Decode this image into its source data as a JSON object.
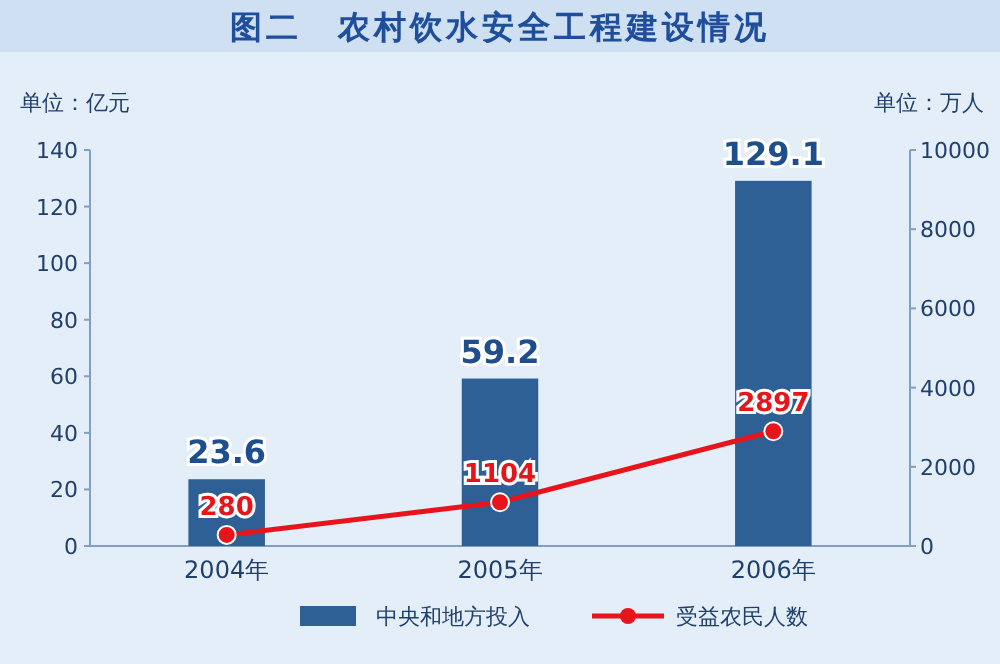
{
  "chart_data": {
    "type": "bar",
    "title": "图二　农村饮水安全工程建设情况",
    "ylabel": "单位：亿元",
    "y2label": "单位：万人",
    "categories": [
      "2004年",
      "2005年",
      "2006年"
    ],
    "series": [
      {
        "name": "中央和地方投入",
        "color": "#2e6096",
        "values": [
          23.6,
          59.2,
          129.1
        ]
      },
      {
        "name": "受益农民人数",
        "type": "line",
        "color": "#e8141b",
        "axis": "y2",
        "values": [
          280,
          1104,
          2897
        ]
      }
    ],
    "ylim": [
      0,
      140
    ],
    "yticks": [
      0,
      20,
      40,
      60,
      80,
      100,
      120,
      140
    ],
    "y2lim": [
      0,
      10000
    ],
    "y2ticks": [
      0,
      2000,
      4000,
      6000,
      8000,
      10000
    ],
    "data_labels": true,
    "legend": "bottom",
    "grid": false,
    "marker": "circle",
    "line_style": "solid"
  }
}
